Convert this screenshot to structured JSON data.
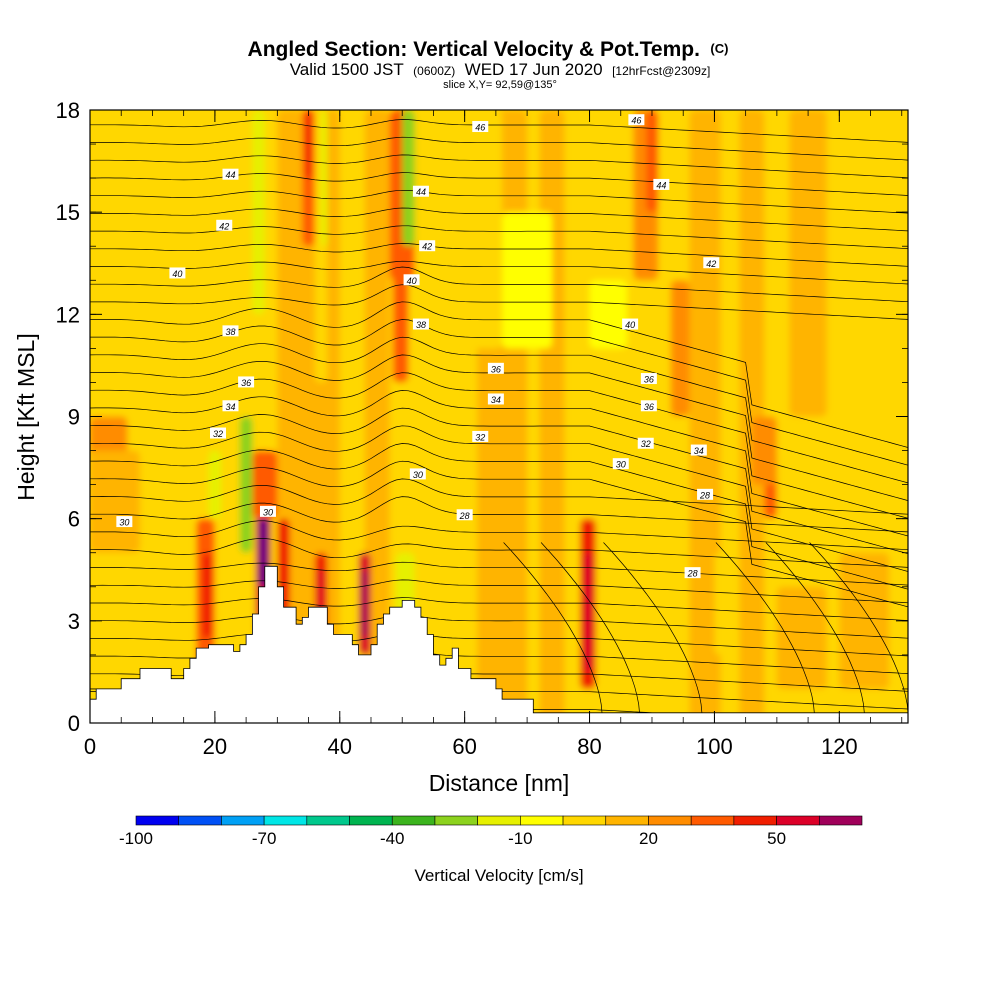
{
  "chart_data": {
    "type": "heatmap",
    "title": "Angled Section: Vertical Velocity & Pot.Temp.",
    "title_unit": "(C)",
    "subtitle": {
      "a": "Valid 1500 JST",
      "b": "(0600Z)",
      "c": "WED 17 Jun 2020",
      "d": "[12hrFcst@2309z]"
    },
    "slice_info": "slice X,Y= 92,59@135°",
    "xlabel": "Distance [nm]",
    "ylabel": "Height [Kft MSL]",
    "xlim": [
      0,
      131
    ],
    "ylim": [
      0,
      18
    ],
    "x_ticks": [
      "0",
      "20",
      "40",
      "60",
      "80",
      "100",
      "120"
    ],
    "y_ticks": [
      "0",
      "3",
      "6",
      "9",
      "12",
      "15",
      "18"
    ],
    "colorbar": {
      "label": "Vertical Velocity [cm/s]",
      "tick_labels": [
        "-100",
        "-70",
        "-40",
        "-10",
        "20",
        "50"
      ],
      "tick_values": [
        -100,
        -70,
        -40,
        -10,
        20,
        50
      ],
      "bin_edges": [
        -100,
        -90,
        -80,
        -70,
        -60,
        -50,
        -40,
        -30,
        -20,
        -10,
        0,
        10,
        20,
        30,
        40,
        50,
        60,
        70
      ],
      "colors": [
        "#0000f0",
        "#0050f5",
        "#00a0f5",
        "#00e6e6",
        "#00c88c",
        "#00b450",
        "#3cb41e",
        "#8cd21e",
        "#e6f000",
        "#ffff00",
        "#ffd700",
        "#ffb400",
        "#ff8c00",
        "#ff5a00",
        "#f01e00",
        "#dc0028",
        "#a0005a",
        "#640082"
      ]
    },
    "terrain_profile": [
      [
        0,
        0.7
      ],
      [
        1,
        0.7
      ],
      [
        1,
        1.0
      ],
      [
        5,
        1.0
      ],
      [
        5,
        1.3
      ],
      [
        8,
        1.3
      ],
      [
        8,
        1.6
      ],
      [
        13,
        1.6
      ],
      [
        13,
        1.3
      ],
      [
        15,
        1.3
      ],
      [
        15,
        1.6
      ],
      [
        16,
        1.6
      ],
      [
        16,
        1.9
      ],
      [
        17,
        1.9
      ],
      [
        17,
        2.2
      ],
      [
        19,
        2.2
      ],
      [
        19,
        2.3
      ],
      [
        23,
        2.3
      ],
      [
        23,
        2.1
      ],
      [
        24,
        2.1
      ],
      [
        24,
        2.3
      ],
      [
        25,
        2.3
      ],
      [
        25,
        2.6
      ],
      [
        26,
        2.6
      ],
      [
        26,
        3.2
      ],
      [
        27,
        3.2
      ],
      [
        27,
        4.0
      ],
      [
        28,
        4.0
      ],
      [
        28,
        4.6
      ],
      [
        30,
        4.6
      ],
      [
        30,
        4.0
      ],
      [
        31,
        4.0
      ],
      [
        31,
        3.4
      ],
      [
        33,
        3.4
      ],
      [
        33,
        2.9
      ],
      [
        34,
        2.9
      ],
      [
        34,
        3.1
      ],
      [
        35,
        3.1
      ],
      [
        35,
        3.4
      ],
      [
        38,
        3.4
      ],
      [
        38,
        2.9
      ],
      [
        39,
        2.9
      ],
      [
        39,
        2.6
      ],
      [
        42,
        2.6
      ],
      [
        42,
        2.3
      ],
      [
        43,
        2.3
      ],
      [
        43,
        2.0
      ],
      [
        45,
        2.0
      ],
      [
        45,
        2.3
      ],
      [
        46,
        2.3
      ],
      [
        46,
        2.9
      ],
      [
        47,
        2.9
      ],
      [
        47,
        3.2
      ],
      [
        48,
        3.2
      ],
      [
        48,
        3.4
      ],
      [
        50,
        3.4
      ],
      [
        50,
        3.6
      ],
      [
        52,
        3.6
      ],
      [
        52,
        3.4
      ],
      [
        53,
        3.4
      ],
      [
        53,
        3.1
      ],
      [
        54,
        3.1
      ],
      [
        54,
        2.6
      ],
      [
        55,
        2.6
      ],
      [
        55,
        2.0
      ],
      [
        56,
        2.0
      ],
      [
        56,
        1.7
      ],
      [
        57,
        1.7
      ],
      [
        57,
        1.9
      ],
      [
        58,
        1.9
      ],
      [
        58,
        2.2
      ],
      [
        59,
        2.2
      ],
      [
        59,
        1.6
      ],
      [
        61,
        1.6
      ],
      [
        61,
        1.3
      ],
      [
        65,
        1.3
      ],
      [
        65,
        1.0
      ],
      [
        66,
        1.0
      ],
      [
        66,
        0.7
      ],
      [
        71,
        0.7
      ],
      [
        71,
        0.3
      ],
      [
        131,
        0.3
      ],
      [
        131,
        0
      ]
    ],
    "theta_contour_labels": [
      {
        "text": "46",
        "x": 62.5,
        "y": 17.5
      },
      {
        "text": "46",
        "x": 87.5,
        "y": 17.7
      },
      {
        "text": "44",
        "x": 22.5,
        "y": 16.1
      },
      {
        "text": "44",
        "x": 53.0,
        "y": 15.6
      },
      {
        "text": "44",
        "x": 91.5,
        "y": 15.8
      },
      {
        "text": "42",
        "x": 21.5,
        "y": 14.6
      },
      {
        "text": "42",
        "x": 54.0,
        "y": 14.0
      },
      {
        "text": "42",
        "x": 99.5,
        "y": 13.5
      },
      {
        "text": "40",
        "x": 14.0,
        "y": 13.2
      },
      {
        "text": "40",
        "x": 51.5,
        "y": 13.0
      },
      {
        "text": "40",
        "x": 86.5,
        "y": 11.7
      },
      {
        "text": "38",
        "x": 22.5,
        "y": 11.5
      },
      {
        "text": "38",
        "x": 53.0,
        "y": 11.7
      },
      {
        "text": "36",
        "x": 65.0,
        "y": 10.4
      },
      {
        "text": "36",
        "x": 25.0,
        "y": 10.0
      },
      {
        "text": "36",
        "x": 89.5,
        "y": 10.1
      },
      {
        "text": "34",
        "x": 22.5,
        "y": 9.3
      },
      {
        "text": "34",
        "x": 65.0,
        "y": 9.5
      },
      {
        "text": "36",
        "x": 89.5,
        "y": 9.3
      },
      {
        "text": "32",
        "x": 20.5,
        "y": 8.5
      },
      {
        "text": "32",
        "x": 62.5,
        "y": 8.4
      },
      {
        "text": "32",
        "x": 89.0,
        "y": 8.2
      },
      {
        "text": "34",
        "x": 97.5,
        "y": 8.0
      },
      {
        "text": "30",
        "x": 85.0,
        "y": 7.6
      },
      {
        "text": "30",
        "x": 52.5,
        "y": 7.3
      },
      {
        "text": "30",
        "x": 28.5,
        "y": 6.2
      },
      {
        "text": "30",
        "x": 5.5,
        "y": 5.9
      },
      {
        "text": "28",
        "x": 60.0,
        "y": 6.1
      },
      {
        "text": "28",
        "x": 98.5,
        "y": 6.7
      },
      {
        "text": "28",
        "x": 96.5,
        "y": 4.4
      }
    ]
  }
}
